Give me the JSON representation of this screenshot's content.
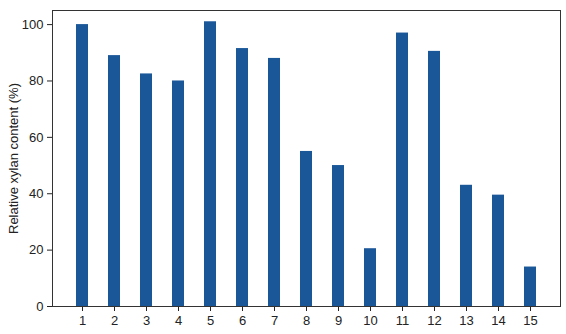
{
  "chart_data": {
    "type": "bar",
    "y_label": "Relative xylan content (%)",
    "categories": [
      "1",
      "2",
      "3",
      "4",
      "5",
      "6",
      "7",
      "8",
      "9",
      "10",
      "11",
      "12",
      "13",
      "14",
      "15"
    ],
    "values": [
      100,
      89,
      82.5,
      80,
      101,
      91.5,
      88,
      55,
      50,
      20.5,
      97,
      90.5,
      43,
      39.5,
      14
    ],
    "color": "#1a5799",
    "ylim": [
      0,
      105
    ],
    "yticks": [
      0,
      20,
      40,
      60,
      80,
      100
    ],
    "grid": false
  }
}
